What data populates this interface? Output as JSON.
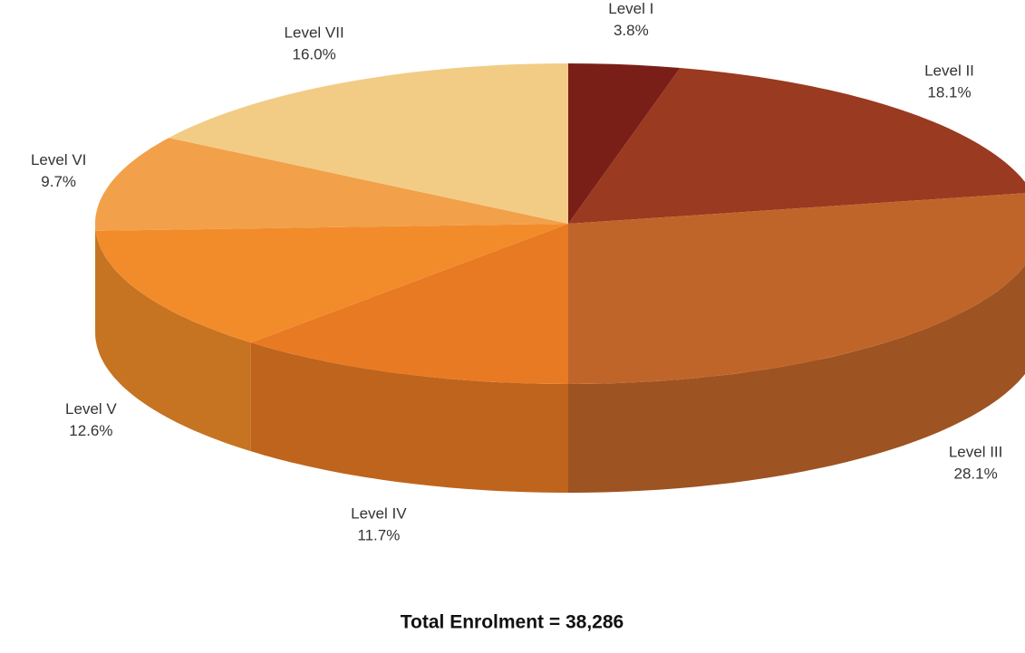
{
  "chart_data": {
    "type": "pie",
    "title": "Total Enrolment = 38,286",
    "categories": [
      "Level I",
      "Level II",
      "Level III",
      "Level IV",
      "Level V",
      "Level VI",
      "Level VII"
    ],
    "values": [
      3.8,
      18.1,
      28.1,
      11.7,
      12.6,
      9.7,
      16.0
    ],
    "value_labels": [
      "3.8%",
      "18.1%",
      "28.1%",
      "11.7%",
      "12.6%",
      "9.7%",
      "16.0%"
    ],
    "colors": [
      "#7a1f17",
      "#9a3a20",
      "#c0652a",
      "#e87a23",
      "#f28c2a",
      "#f2a04a",
      "#f2cc85"
    ]
  }
}
